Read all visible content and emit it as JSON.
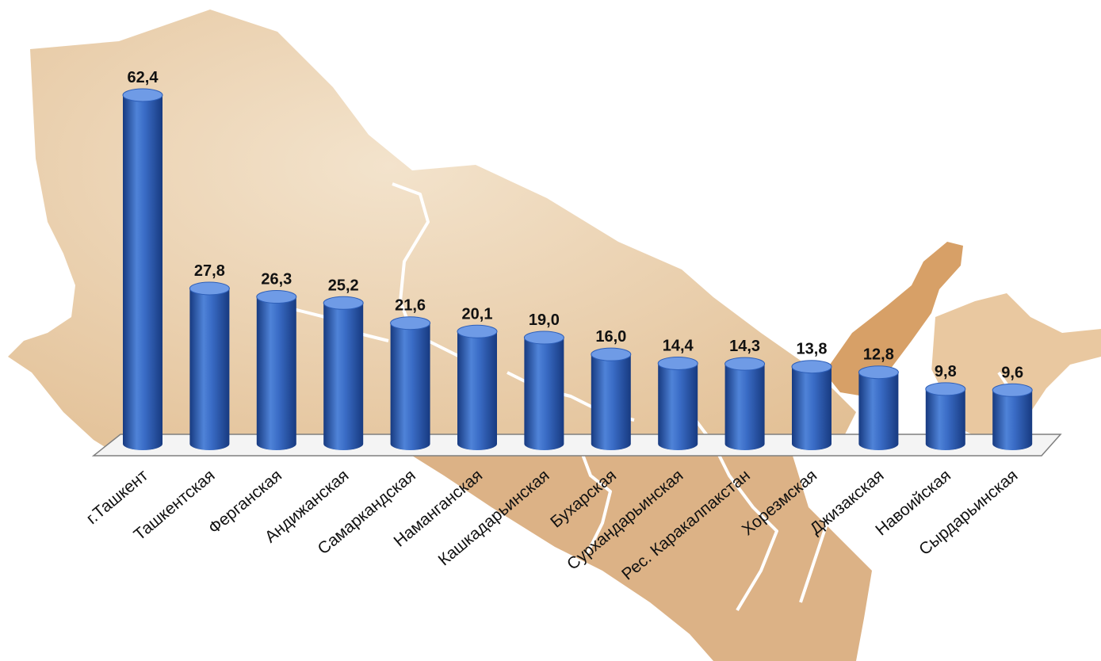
{
  "chart_data": {
    "type": "bar",
    "style": "3d-cylinder",
    "title": "",
    "xlabel": "",
    "ylabel": "",
    "categories": [
      "г.Ташкент",
      "Ташкентская",
      "Ферганская",
      "Андижанская",
      "Самаркандская",
      "Наманганская",
      "Кашкадарьинская",
      "Бухарская",
      "Сурхандарьинская",
      "Рес. Каракалпакстан",
      "Хорезмская",
      "Джизакская",
      "Навоийская",
      "Сырдарьинская"
    ],
    "values": [
      62.4,
      27.8,
      26.3,
      25.2,
      21.6,
      20.1,
      19.0,
      16.0,
      14.4,
      14.3,
      13.8,
      12.8,
      9.8,
      9.6
    ],
    "value_labels": [
      "62,4",
      "27,8",
      "26,3",
      "25,2",
      "21,6",
      "20,1",
      "19,0",
      "16,0",
      "14,4",
      "14,3",
      "13,8",
      "12,8",
      "9,8",
      "9,6"
    ],
    "ylim": [
      0,
      66
    ],
    "grid": false,
    "legend": "none",
    "colors": {
      "bar": "#2e5fb8",
      "bar_dark": "#173a80",
      "bar_light": "#6f9be6",
      "floor": "#f4f4f4",
      "map_light": "#edd8bb",
      "map_mid": "#e2bf94",
      "map_highlight": "#d7a067",
      "border": "#ffffff"
    }
  }
}
